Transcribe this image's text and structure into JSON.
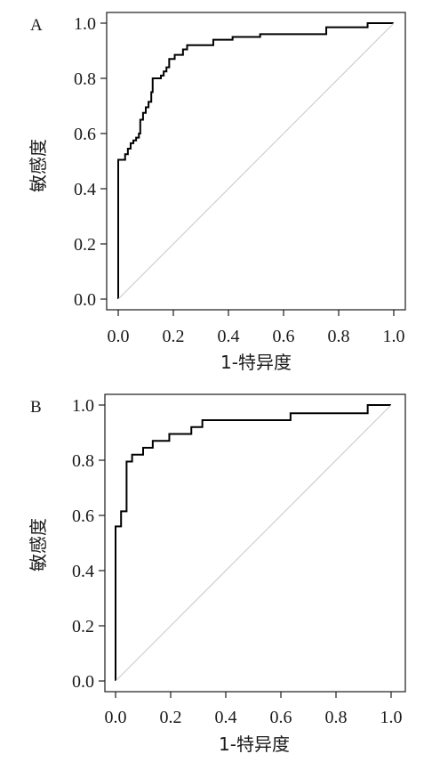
{
  "chart_data": [
    {
      "type": "line",
      "panel_label": "A",
      "xlabel": "1-特异度",
      "ylabel": "敏感度",
      "xlim": [
        0,
        1
      ],
      "ylim": [
        0,
        1
      ],
      "x_ticks": [
        "0.0",
        "0.2",
        "0.4",
        "0.6",
        "0.8",
        "1.0"
      ],
      "y_ticks": [
        "0.0",
        "0.2",
        "0.4",
        "0.6",
        "0.8",
        "1.0"
      ],
      "grid": false,
      "series": [
        {
          "style": "step",
          "color": "#000000",
          "points": [
            [
              0.0,
              0.0
            ],
            [
              0.0,
              0.505
            ],
            [
              0.025,
              0.505
            ],
            [
              0.025,
              0.525
            ],
            [
              0.035,
              0.525
            ],
            [
              0.035,
              0.545
            ],
            [
              0.045,
              0.545
            ],
            [
              0.045,
              0.565
            ],
            [
              0.055,
              0.565
            ],
            [
              0.055,
              0.575
            ],
            [
              0.065,
              0.575
            ],
            [
              0.065,
              0.585
            ],
            [
              0.075,
              0.585
            ],
            [
              0.075,
              0.6
            ],
            [
              0.08,
              0.6
            ],
            [
              0.08,
              0.65
            ],
            [
              0.09,
              0.65
            ],
            [
              0.09,
              0.675
            ],
            [
              0.1,
              0.675
            ],
            [
              0.1,
              0.695
            ],
            [
              0.11,
              0.695
            ],
            [
              0.11,
              0.715
            ],
            [
              0.12,
              0.715
            ],
            [
              0.12,
              0.75
            ],
            [
              0.125,
              0.75
            ],
            [
              0.125,
              0.8
            ],
            [
              0.155,
              0.8
            ],
            [
              0.155,
              0.81
            ],
            [
              0.165,
              0.81
            ],
            [
              0.165,
              0.825
            ],
            [
              0.175,
              0.825
            ],
            [
              0.175,
              0.84
            ],
            [
              0.185,
              0.84
            ],
            [
              0.185,
              0.87
            ],
            [
              0.205,
              0.87
            ],
            [
              0.205,
              0.885
            ],
            [
              0.235,
              0.885
            ],
            [
              0.235,
              0.905
            ],
            [
              0.25,
              0.905
            ],
            [
              0.25,
              0.92
            ],
            [
              0.345,
              0.92
            ],
            [
              0.345,
              0.94
            ],
            [
              0.415,
              0.94
            ],
            [
              0.415,
              0.95
            ],
            [
              0.515,
              0.95
            ],
            [
              0.515,
              0.96
            ],
            [
              0.755,
              0.96
            ],
            [
              0.755,
              0.985
            ],
            [
              0.905,
              0.985
            ],
            [
              0.905,
              1.0
            ],
            [
              1.0,
              1.0
            ]
          ]
        },
        {
          "style": "diagonal",
          "color": "#c8c8c8",
          "points": [
            [
              0,
              0
            ],
            [
              1,
              1
            ]
          ]
        }
      ]
    },
    {
      "type": "line",
      "panel_label": "B",
      "xlabel": "1-特异度",
      "ylabel": "敏感度",
      "xlim": [
        0,
        1
      ],
      "ylim": [
        0,
        1
      ],
      "x_ticks": [
        "0.0",
        "0.2",
        "0.4",
        "0.6",
        "0.8",
        "1.0"
      ],
      "y_ticks": [
        "0.0",
        "0.2",
        "0.4",
        "0.6",
        "0.8",
        "1.0"
      ],
      "grid": false,
      "series": [
        {
          "style": "step",
          "color": "#000000",
          "points": [
            [
              0.0,
              0.0
            ],
            [
              0.0,
              0.56
            ],
            [
              0.02,
              0.56
            ],
            [
              0.02,
              0.615
            ],
            [
              0.04,
              0.615
            ],
            [
              0.04,
              0.795
            ],
            [
              0.06,
              0.795
            ],
            [
              0.06,
              0.82
            ],
            [
              0.1,
              0.82
            ],
            [
              0.1,
              0.845
            ],
            [
              0.135,
              0.845
            ],
            [
              0.135,
              0.87
            ],
            [
              0.195,
              0.87
            ],
            [
              0.195,
              0.895
            ],
            [
              0.275,
              0.895
            ],
            [
              0.275,
              0.92
            ],
            [
              0.315,
              0.92
            ],
            [
              0.315,
              0.945
            ],
            [
              0.635,
              0.945
            ],
            [
              0.635,
              0.97
            ],
            [
              0.915,
              0.97
            ],
            [
              0.915,
              1.0
            ],
            [
              1.0,
              1.0
            ]
          ]
        },
        {
          "style": "diagonal",
          "color": "#c8c8c8",
          "points": [
            [
              0,
              0
            ],
            [
              1,
              1
            ]
          ]
        }
      ]
    }
  ]
}
